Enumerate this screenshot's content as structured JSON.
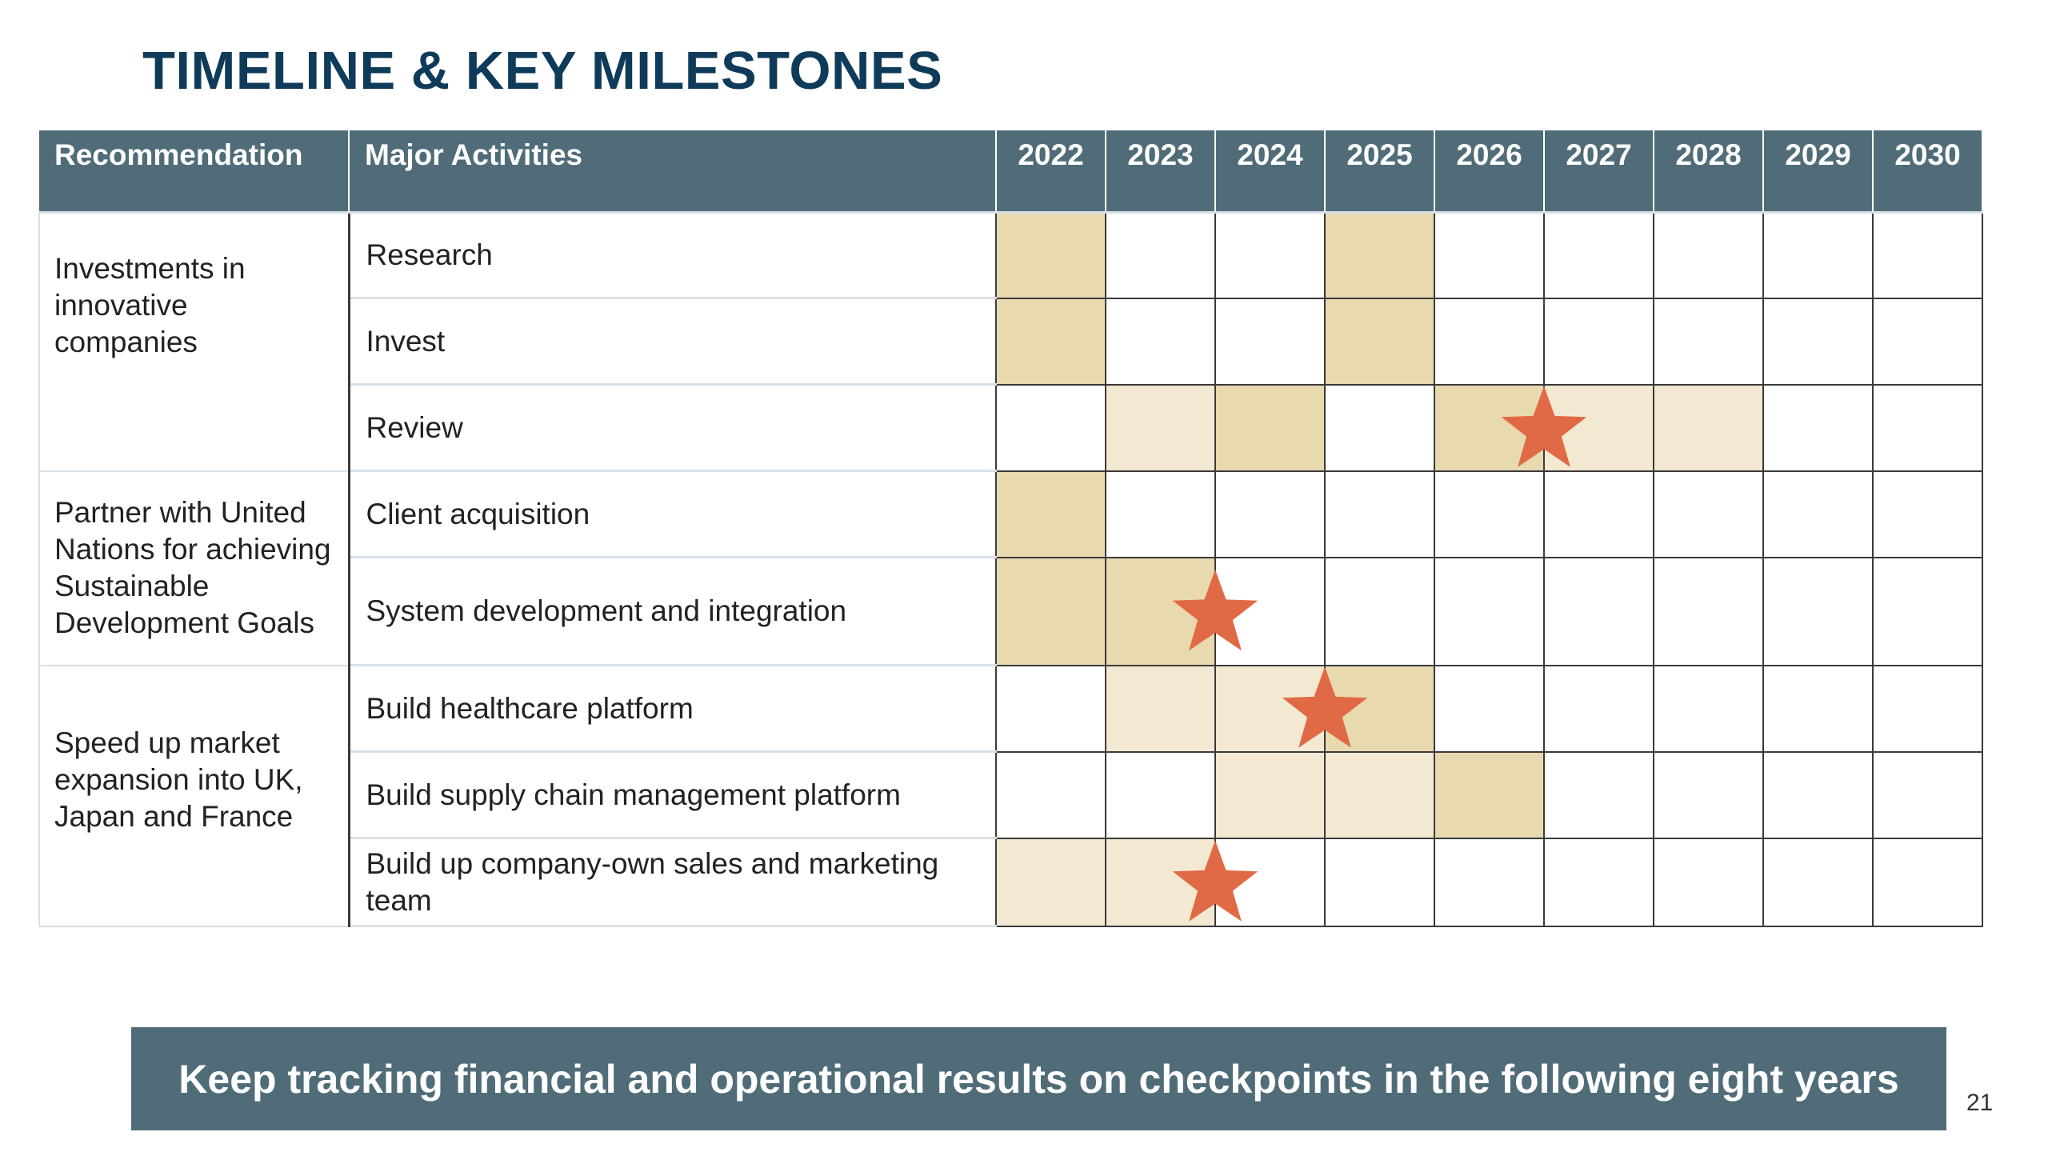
{
  "title": "TIMELINE & KEY MILESTONES",
  "table": {
    "headers": {
      "recommendation": "Recommendation",
      "activities": "Major Activities",
      "years": [
        "2022",
        "2023",
        "2024",
        "2025",
        "2026",
        "2027",
        "2028",
        "2029",
        "2030"
      ]
    },
    "groups": [
      {
        "recommendation": "Investments in innovative companies",
        "rows": [
          {
            "activity": "Research",
            "shading": [
              2,
              0,
              0,
              2,
              0,
              0,
              0,
              0,
              0
            ]
          },
          {
            "activity": "Invest",
            "shading": [
              2,
              0,
              0,
              2,
              0,
              0,
              0,
              0,
              0
            ]
          },
          {
            "activity": "Review",
            "shading": [
              0,
              1,
              2,
              0,
              2,
              1,
              1,
              0,
              0
            ]
          }
        ]
      },
      {
        "recommendation": "Partner with United Nations for achieving Sustainable Development Goals",
        "rows": [
          {
            "activity": "Client acquisition",
            "shading": [
              2,
              0,
              0,
              0,
              0,
              0,
              0,
              0,
              0
            ]
          },
          {
            "activity": "System development and integration",
            "shading": [
              2,
              2,
              0,
              0,
              0,
              0,
              0,
              0,
              0
            ]
          }
        ]
      },
      {
        "recommendation": "Speed up market expansion into UK, Japan and France",
        "rows": [
          {
            "activity": "Build healthcare platform",
            "shading": [
              0,
              1,
              1,
              2,
              0,
              0,
              0,
              0,
              0
            ]
          },
          {
            "activity": "Build supply chain management platform",
            "shading": [
              0,
              0,
              1,
              1,
              2,
              0,
              0,
              0,
              0
            ]
          },
          {
            "activity": "Build up company-own sales and marketing team",
            "shading": [
              1,
              1,
              0,
              0,
              0,
              0,
              0,
              0,
              0
            ]
          }
        ]
      }
    ],
    "milestones": [
      {
        "activity": "Review",
        "year": "2027"
      },
      {
        "activity": "System development and integration",
        "year": "2024"
      },
      {
        "activity": "Build healthcare platform",
        "year": "2025"
      },
      {
        "activity": "Build up company-own sales and marketing team",
        "year": "2024"
      }
    ],
    "colors": {
      "header": "#506c78",
      "dark_fill": "#e8d9af",
      "light_fill": "#f3e9d3",
      "star": "#e06a45"
    }
  },
  "banner": "Keep tracking financial and operational results on checkpoints in the following eight years",
  "page_number": "21"
}
